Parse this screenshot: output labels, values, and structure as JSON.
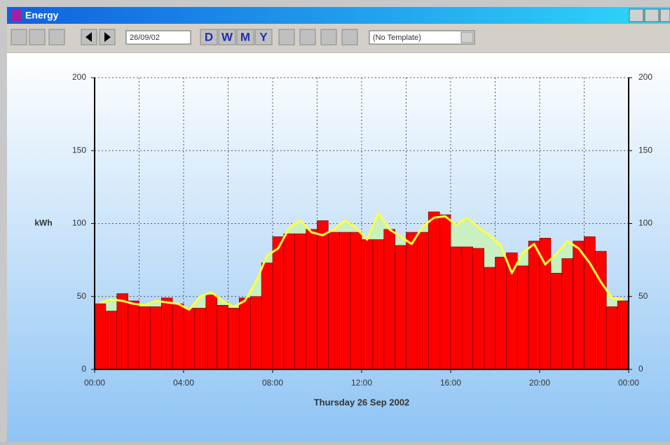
{
  "window": {
    "title": "Energy",
    "date": "26/09/02",
    "periods": [
      "D",
      "W",
      "M",
      "Y"
    ],
    "template": "(No Template)"
  },
  "chart_data": {
    "type": "bar-line",
    "xlabel": "Thursday 26 Sep 2002",
    "ylabel": "kWh",
    "xlim": [
      0,
      24
    ],
    "xticks": [
      {
        "value": 0,
        "label": "00:00"
      },
      {
        "value": 4,
        "label": "04:00"
      },
      {
        "value": 8,
        "label": "08:00"
      },
      {
        "value": 12,
        "label": "12:00"
      },
      {
        "value": 16,
        "label": "16:00"
      },
      {
        "value": 20,
        "label": "20:00"
      },
      {
        "value": 24,
        "label": "00:00"
      }
    ],
    "x_minor_grid": [
      2,
      6,
      10,
      14,
      18,
      22
    ],
    "ylim": [
      0,
      200
    ],
    "yticks": [
      0,
      50,
      100,
      150,
      200
    ],
    "y2lim": [
      0,
      200
    ],
    "y2ticks": [
      0,
      50,
      100,
      150,
      200
    ],
    "grid": true,
    "bars": {
      "color": "#ff0000",
      "x": [
        0,
        0.5,
        1,
        1.5,
        2,
        2.5,
        3,
        3.5,
        4,
        4.5,
        5,
        5.5,
        6,
        6.5,
        7,
        7.5,
        8,
        8.5,
        9,
        9.5,
        10,
        10.5,
        11,
        11.5,
        12,
        12.5,
        13,
        13.5,
        14,
        14.5,
        15,
        15.5,
        16,
        16.5,
        17,
        17.5,
        18,
        18.5,
        19,
        19.5,
        20,
        20.5,
        21,
        21.5,
        22,
        22.5,
        23,
        23.5
      ],
      "values": [
        45,
        40,
        52,
        47,
        43,
        43,
        49,
        45,
        42,
        42,
        51,
        44,
        42,
        49,
        50,
        73,
        91,
        93,
        93,
        96,
        102,
        94,
        94,
        94,
        89,
        89,
        96,
        85,
        94,
        94,
        108,
        106,
        84,
        84,
        83,
        70,
        77,
        80,
        71,
        88,
        90,
        66,
        76,
        88,
        91,
        81,
        43,
        47
      ]
    },
    "line": {
      "color": "#ffff40",
      "area_color": "#c8f0c0",
      "x": [
        0.25,
        0.75,
        1.25,
        1.75,
        2.25,
        2.75,
        3.25,
        3.75,
        4.25,
        4.75,
        5.25,
        5.75,
        6.25,
        6.75,
        7.25,
        7.75,
        8.25,
        8.75,
        9.25,
        9.75,
        10.25,
        10.75,
        11.25,
        11.75,
        12.25,
        12.75,
        13.25,
        13.75,
        14.25,
        14.75,
        15.25,
        15.75,
        16.25,
        16.75,
        17.25,
        17.75,
        18.25,
        18.75,
        19.25,
        19.75,
        20.25,
        20.75,
        21.25,
        21.75,
        22.25,
        22.75,
        23.25,
        23.75
      ],
      "values": [
        46,
        48,
        47,
        45,
        44,
        47,
        46,
        45,
        41,
        50,
        53,
        47,
        43,
        47,
        60,
        78,
        83,
        97,
        102,
        94,
        92,
        96,
        102,
        97,
        89,
        107,
        96,
        91,
        86,
        98,
        104,
        105,
        99,
        104,
        97,
        92,
        85,
        66,
        80,
        86,
        72,
        79,
        88,
        83,
        73,
        60,
        49,
        48
      ]
    }
  }
}
